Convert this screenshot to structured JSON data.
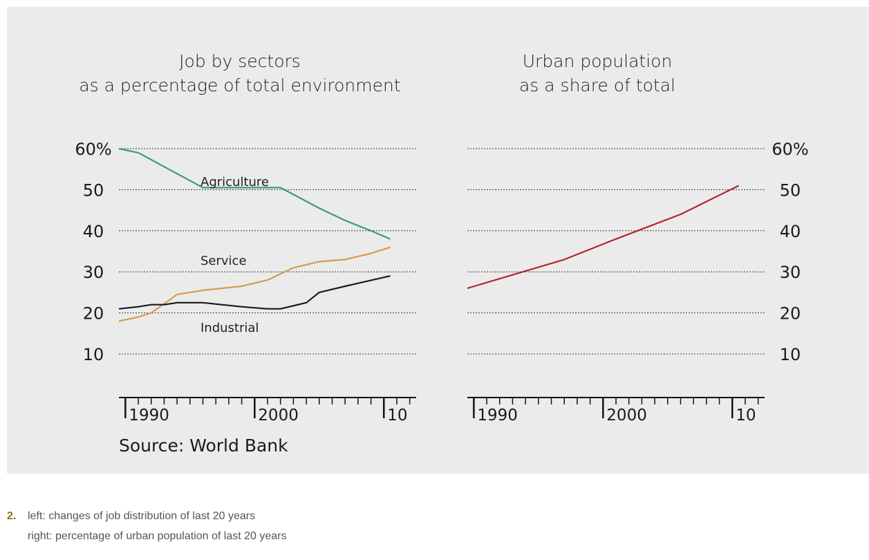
{
  "source": "Source: World Bank",
  "caption": {
    "number": "2.",
    "line1": "left: changes of job distribution of last 20 years",
    "line2": "right: percentage of urban population of last 20 years"
  },
  "chart_data": [
    {
      "type": "line",
      "title": [
        "Job by sectors",
        "as a percentage of total environment"
      ],
      "ylim": [
        0,
        60
      ],
      "yticks": [
        10,
        20,
        30,
        40,
        50,
        60
      ],
      "ytick_labels": [
        "10",
        "20",
        "30",
        "40",
        "50",
        "60%"
      ],
      "xlim": [
        1988.5,
        2011.5
      ],
      "xtick_labels": [
        {
          "x": 1989,
          "label": "1990"
        },
        {
          "x": 1999,
          "label": "2000"
        },
        {
          "x": 2009,
          "label": "10"
        }
      ],
      "grid": true,
      "series": [
        {
          "name": "Agriculture",
          "color": "#3e9a7a",
          "x": [
            1988.5,
            1990,
            1995,
            2000,
            2001,
            2004,
            2006,
            2008,
            2009.5
          ],
          "y": [
            60,
            59,
            50.5,
            50.5,
            50.5,
            45.5,
            42.5,
            40,
            38
          ]
        },
        {
          "name": "Service",
          "color": "#d79a52",
          "x": [
            1988.5,
            1990,
            1991,
            1993,
            1995,
            1998,
            2000,
            2002,
            2004,
            2006,
            2008,
            2009.5
          ],
          "y": [
            18,
            19,
            20,
            24.5,
            25.5,
            26.5,
            28,
            31,
            32.5,
            33,
            34.5,
            36
          ]
        },
        {
          "name": "Industrial",
          "color": "#1a1a1a",
          "x": [
            1988.5,
            1990,
            1991,
            1992,
            1993,
            1995,
            1998,
            2000,
            2001,
            2003,
            2004,
            2006,
            2009.5
          ],
          "y": [
            21,
            21.5,
            22,
            22,
            22.5,
            22.5,
            21.5,
            21,
            21,
            22.5,
            25,
            26.5,
            29
          ]
        }
      ]
    },
    {
      "type": "line",
      "title": [
        "Urban population",
        "as a share of total"
      ],
      "ylim": [
        0,
        60
      ],
      "yticks": [
        10,
        20,
        30,
        40,
        50,
        60
      ],
      "ytick_labels": [
        "10",
        "20",
        "30",
        "40",
        "50",
        "60%"
      ],
      "xlim": [
        1988.5,
        2011.5
      ],
      "xtick_labels": [
        {
          "x": 1989,
          "label": "1990"
        },
        {
          "x": 1999,
          "label": "2000"
        },
        {
          "x": 2009,
          "label": "10"
        }
      ],
      "grid": true,
      "series": [
        {
          "name": "",
          "color": "#b3242f",
          "x": [
            1988.5,
            1996,
            2000,
            2005,
            2009.5
          ],
          "y": [
            26,
            33,
            38,
            44,
            51
          ]
        }
      ]
    }
  ]
}
